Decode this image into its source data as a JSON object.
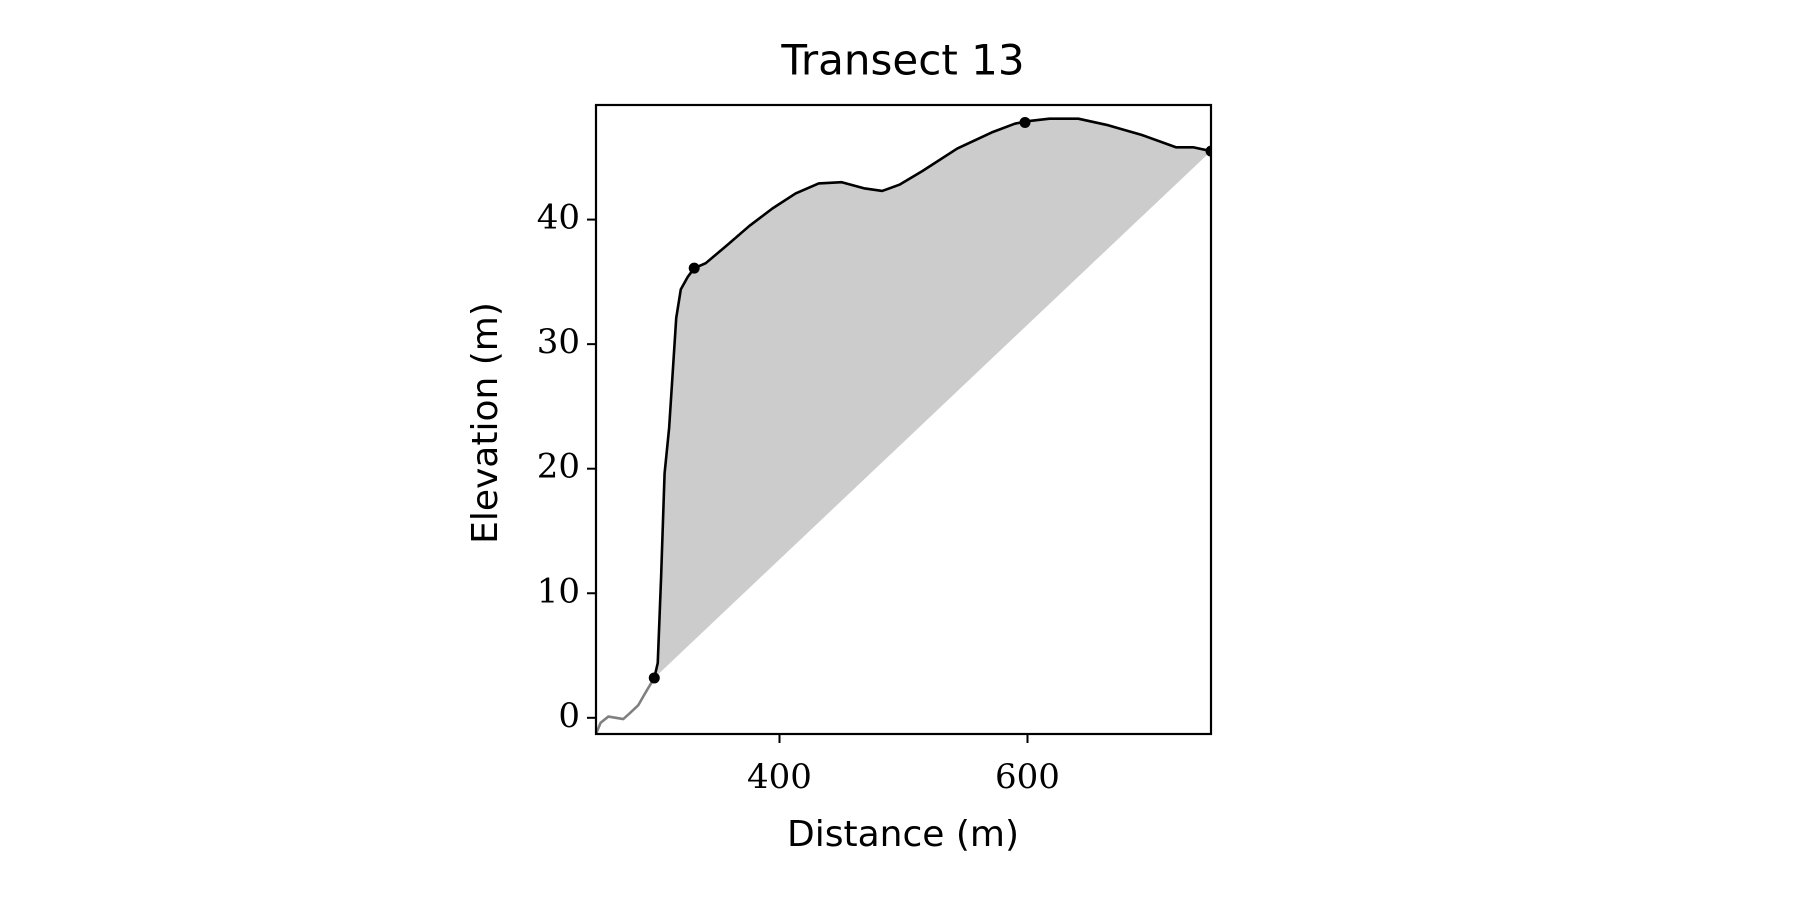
{
  "chart_data": {
    "type": "line",
    "title": "Transect 13",
    "x_label": "Distance (m)",
    "y_label": "Elevation (m)",
    "xlim": [
      252,
      748
    ],
    "ylim": [
      -1.3,
      49.2
    ],
    "xticks": [
      400,
      600
    ],
    "yticks": [
      0,
      10,
      20,
      30,
      40
    ],
    "series": [
      {
        "color": "#808080",
        "x": [
          252,
          255.7,
          262,
          268,
          274,
          279.6,
          286,
          292.4,
          299
        ],
        "values": [
          -1.3,
          -0.4,
          0.1,
          0,
          -0.1,
          0.4,
          1,
          2.1,
          3.2
        ]
      },
      {
        "color": "#000000",
        "fill_color": "#cccccc",
        "x": [
          299,
          301.8,
          304.5,
          307.3,
          311,
          316.7,
          320.4,
          326,
          331.2,
          340.5,
          357.2,
          375.8,
          394.4,
          413,
          431.6,
          450.2,
          468.8,
          482.8,
          496.7,
          515.3,
          543.3,
          571.2,
          589.8,
          600,
          617.7,
          641,
          664,
          692,
          720,
          734,
          748
        ],
        "values": [
          3.2,
          4.4,
          11.3,
          19.6,
          23.3,
          32.1,
          34.4,
          35.4,
          36.1,
          36.5,
          37.9,
          39.5,
          40.9,
          42.1,
          42.9,
          43,
          42.5,
          42.3,
          42.8,
          43.9,
          45.7,
          47,
          47.7,
          47.9,
          48.1,
          48.1,
          47.6,
          46.8,
          45.8,
          45.8,
          45.5
        ]
      },
      {
        "color": "#000000",
        "style": "points",
        "x": [
          299,
          331.2,
          598,
          748
        ],
        "values": [
          3.2,
          36.1,
          47.8,
          45.5
        ]
      }
    ]
  }
}
